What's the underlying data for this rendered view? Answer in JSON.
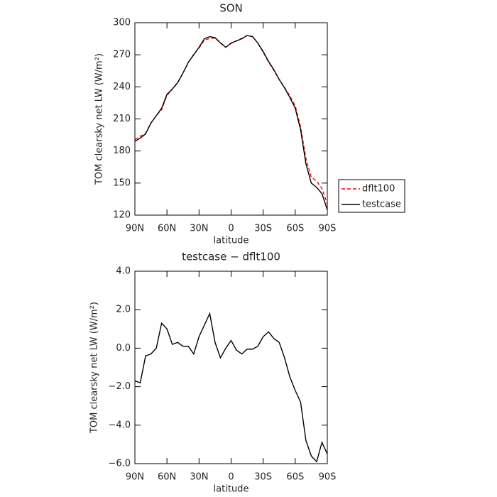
{
  "chart_data": [
    {
      "type": "line",
      "title": "SON",
      "xlabel": "latitude",
      "ylabel": "TOM clearsky net LW (W/m²)",
      "x": [
        90,
        85,
        80,
        75,
        70,
        65,
        60,
        55,
        50,
        45,
        40,
        35,
        30,
        25,
        20,
        15,
        10,
        5,
        0,
        -5,
        -10,
        -15,
        -20,
        -25,
        -30,
        -35,
        -40,
        -45,
        -50,
        -55,
        -60,
        -65,
        -70,
        -75,
        -80,
        -85,
        -90
      ],
      "series": [
        {
          "name": "dflt100",
          "color": "#ff0000",
          "linestyle": "dashed",
          "values": [
            190.7,
            193.8,
            196.4,
            206.3,
            213,
            218.7,
            232,
            237.8,
            243.7,
            252.9,
            262.9,
            270.3,
            276.4,
            283.8,
            285.2,
            285.7,
            281.5,
            277,
            280.6,
            283.1,
            285.3,
            288,
            287,
            280.9,
            272.4,
            263.2,
            255.5,
            246.7,
            239.5,
            231.5,
            222.2,
            202.8,
            172.8,
            155.6,
            151.9,
            144.9,
            130.5
          ]
        },
        {
          "name": "testcase",
          "color": "#000000",
          "linestyle": "solid",
          "values": [
            189,
            192,
            196,
            206,
            213,
            220,
            233,
            238,
            244,
            253,
            263,
            270,
            277,
            285,
            287,
            286,
            281,
            277,
            281,
            283,
            285,
            288,
            287,
            281,
            273,
            264,
            256,
            247,
            239,
            230,
            220,
            200,
            168,
            150,
            146,
            140,
            125
          ]
        }
      ],
      "xlim": [
        90,
        -90
      ],
      "xticks": [
        {
          "value": 90,
          "label": "90N"
        },
        {
          "value": 60,
          "label": "60N"
        },
        {
          "value": 30,
          "label": "30N"
        },
        0,
        {
          "value": -30,
          "label": "30S"
        },
        {
          "value": -60,
          "label": "60S"
        },
        {
          "value": -90,
          "label": "90S"
        }
      ],
      "ylim": [
        120,
        300
      ],
      "yticks": [
        120,
        150,
        180,
        210,
        240,
        270,
        300
      ],
      "legend": "right"
    },
    {
      "type": "line",
      "title": "testcase − dflt100",
      "xlabel": "latitude",
      "ylabel": "TOM clearsky net LW (W/m²)",
      "x": [
        90,
        85,
        80,
        75,
        70,
        65,
        60,
        55,
        50,
        45,
        40,
        35,
        30,
        25,
        20,
        15,
        10,
        5,
        0,
        -5,
        -10,
        -15,
        -20,
        -25,
        -30,
        -35,
        -40,
        -45,
        -50,
        -55,
        -60,
        -65,
        -70,
        -75,
        -80,
        -85,
        -90
      ],
      "series": [
        {
          "color": "#000000",
          "linestyle": "solid",
          "values": [
            -1.7,
            -1.8,
            -0.4,
            -0.3,
            0,
            1.3,
            1,
            0.2,
            0.3,
            0.1,
            0.1,
            -0.3,
            0.6,
            1.2,
            1.8,
            0.3,
            -0.5,
            0,
            0.4,
            -0.1,
            -0.3,
            -0.05,
            -0.05,
            0.1,
            0.6,
            0.85,
            0.5,
            0.3,
            -0.5,
            -1.5,
            -2.2,
            -2.8,
            -4.8,
            -5.6,
            -5.9,
            -4.9,
            -5.5
          ]
        }
      ],
      "xlim": [
        90,
        -90
      ],
      "xticks": [
        {
          "value": 90,
          "label": "90N"
        },
        {
          "value": 60,
          "label": "60N"
        },
        {
          "value": 30,
          "label": "30N"
        },
        0,
        {
          "value": -30,
          "label": "30S"
        },
        {
          "value": -60,
          "label": "60S"
        },
        {
          "value": -90,
          "label": "90S"
        }
      ],
      "ylim": [
        -6,
        4
      ],
      "yticks": [
        {
          "value": -6,
          "label": "−6.0"
        },
        {
          "value": -4,
          "label": "−4.0"
        },
        {
          "value": -2,
          "label": "−2.0"
        },
        {
          "value": 0,
          "label": "0.0"
        },
        {
          "value": 2,
          "label": "2.0"
        },
        {
          "value": 4,
          "label": "4.0"
        }
      ]
    }
  ]
}
